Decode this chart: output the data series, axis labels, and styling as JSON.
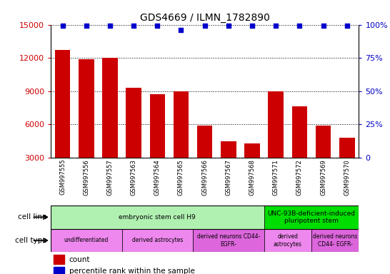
{
  "title": "GDS4669 / ILMN_1782890",
  "samples": [
    "GSM997555",
    "GSM997556",
    "GSM997557",
    "GSM997563",
    "GSM997564",
    "GSM997565",
    "GSM997566",
    "GSM997567",
    "GSM997568",
    "GSM997571",
    "GSM997572",
    "GSM997569",
    "GSM997570"
  ],
  "counts": [
    12700,
    11900,
    12000,
    9300,
    8700,
    9000,
    5900,
    4500,
    4300,
    9000,
    7600,
    5900,
    4800
  ],
  "percentiles": [
    99,
    99,
    99,
    99,
    99,
    96,
    99,
    99,
    99,
    99,
    99,
    99,
    99
  ],
  "bar_color": "#cc0000",
  "dot_color": "#0000cc",
  "ylim_left": [
    3000,
    15000
  ],
  "ylim_right": [
    0,
    100
  ],
  "yticks_left": [
    3000,
    6000,
    9000,
    12000,
    15000
  ],
  "yticks_right": [
    0,
    25,
    50,
    75,
    100
  ],
  "cell_line_groups": [
    {
      "label": "embryonic stem cell H9",
      "start": 0,
      "end": 9,
      "color": "#b0f0b0"
    },
    {
      "label": "UNC-93B-deficient-induced\npluripotent stem",
      "start": 9,
      "end": 13,
      "color": "#00dd00"
    }
  ],
  "cell_type_groups": [
    {
      "label": "undifferentiated",
      "start": 0,
      "end": 3,
      "color": "#ee88ee"
    },
    {
      "label": "derived astrocytes",
      "start": 3,
      "end": 6,
      "color": "#ee88ee"
    },
    {
      "label": "derived neurons CD44-\nEGFR-",
      "start": 6,
      "end": 9,
      "color": "#dd66dd"
    },
    {
      "label": "derived\nastrocytes",
      "start": 9,
      "end": 11,
      "color": "#ee88ee"
    },
    {
      "label": "derived neurons\nCD44- EGFR-",
      "start": 11,
      "end": 13,
      "color": "#dd66dd"
    }
  ],
  "bg_color": "#ffffff",
  "tick_label_color_left": "#cc0000",
  "tick_label_color_right": "#0000cc",
  "gray_bg": "#c8c8c8"
}
